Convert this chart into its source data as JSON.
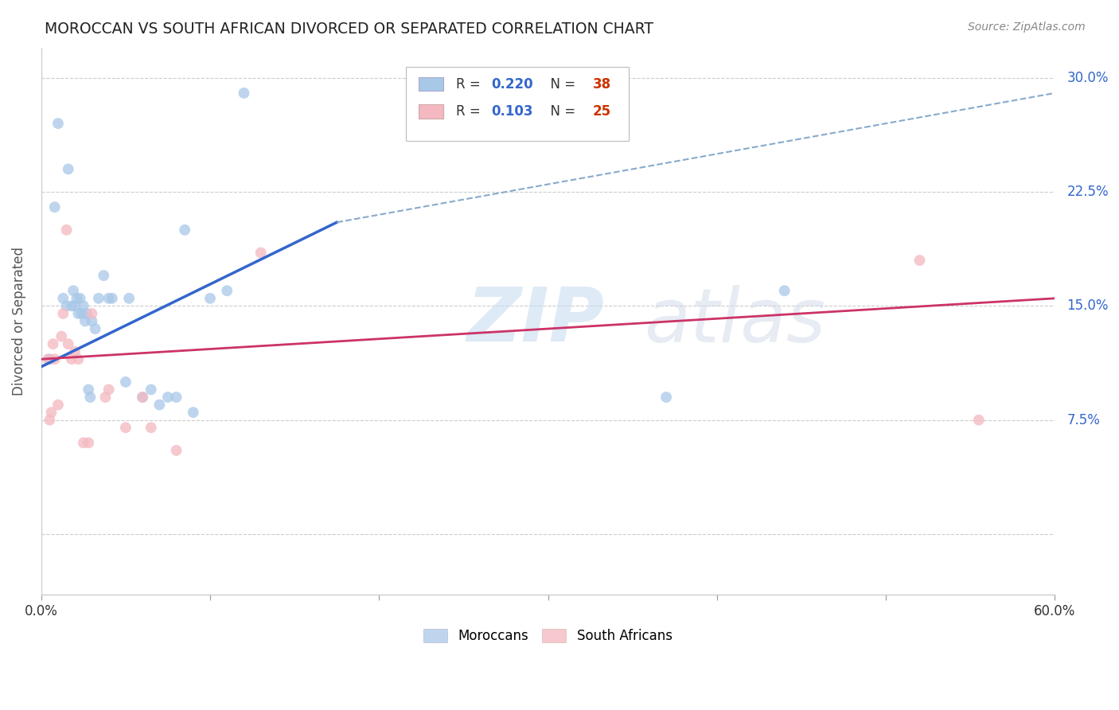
{
  "title": "MOROCCAN VS SOUTH AFRICAN DIVORCED OR SEPARATED CORRELATION CHART",
  "source": "Source: ZipAtlas.com",
  "ylabel": "Divorced or Separated",
  "xlabel": "",
  "xlim": [
    0.0,
    0.6
  ],
  "ylim": [
    -0.04,
    0.32
  ],
  "xticks": [
    0.0,
    0.1,
    0.2,
    0.3,
    0.4,
    0.5,
    0.6
  ],
  "xticklabels": [
    "0.0%",
    "",
    "",
    "",
    "",
    "",
    "60.0%"
  ],
  "yticks": [
    0.0,
    0.075,
    0.15,
    0.225,
    0.3
  ],
  "yticklabels": [
    "",
    "7.5%",
    "15.0%",
    "22.5%",
    "30.0%"
  ],
  "legend_moroccan_R": "0.220",
  "legend_moroccan_N": "38",
  "legend_sa_R": "0.103",
  "legend_sa_N": "25",
  "moroccan_color": "#a8c8e8",
  "sa_color": "#f4b8c0",
  "moroccan_line_color": "#3366cc",
  "sa_line_color": "#cc3366",
  "dashed_line_color": "#88aacc",
  "watermark_color": "#ddeeff",
  "moroccan_x": [
    0.005,
    0.008,
    0.01,
    0.013,
    0.015,
    0.016,
    0.018,
    0.019,
    0.02,
    0.021,
    0.022,
    0.023,
    0.024,
    0.025,
    0.026,
    0.027,
    0.028,
    0.029,
    0.03,
    0.032,
    0.034,
    0.037,
    0.04,
    0.042,
    0.05,
    0.052,
    0.06,
    0.065,
    0.07,
    0.075,
    0.08,
    0.085,
    0.09,
    0.1,
    0.11,
    0.12,
    0.37,
    0.44
  ],
  "moroccan_y": [
    0.115,
    0.215,
    0.27,
    0.155,
    0.15,
    0.24,
    0.15,
    0.16,
    0.15,
    0.155,
    0.145,
    0.155,
    0.145,
    0.15,
    0.14,
    0.145,
    0.095,
    0.09,
    0.14,
    0.135,
    0.155,
    0.17,
    0.155,
    0.155,
    0.1,
    0.155,
    0.09,
    0.095,
    0.085,
    0.09,
    0.09,
    0.2,
    0.08,
    0.155,
    0.16,
    0.29,
    0.09,
    0.16
  ],
  "sa_x": [
    0.004,
    0.005,
    0.006,
    0.007,
    0.008,
    0.01,
    0.012,
    0.013,
    0.015,
    0.016,
    0.018,
    0.02,
    0.022,
    0.025,
    0.028,
    0.03,
    0.038,
    0.04,
    0.05,
    0.06,
    0.065,
    0.08,
    0.13,
    0.52,
    0.555
  ],
  "sa_y": [
    0.115,
    0.075,
    0.08,
    0.125,
    0.115,
    0.085,
    0.13,
    0.145,
    0.2,
    0.125,
    0.115,
    0.12,
    0.115,
    0.06,
    0.06,
    0.145,
    0.09,
    0.095,
    0.07,
    0.09,
    0.07,
    0.055,
    0.185,
    0.18,
    0.075
  ],
  "moroccan_line_x": [
    0.0,
    0.175
  ],
  "moroccan_line_y": [
    0.11,
    0.205
  ],
  "sa_line_x": [
    0.0,
    0.6
  ],
  "sa_line_y": [
    0.115,
    0.155
  ],
  "dashed_line_x": [
    0.175,
    0.6
  ],
  "dashed_line_y": [
    0.205,
    0.29
  ],
  "grid_color": "#cccccc",
  "background_color": "#ffffff",
  "legend_R_color": "#3366cc",
  "legend_N_color": "#cc3300"
}
